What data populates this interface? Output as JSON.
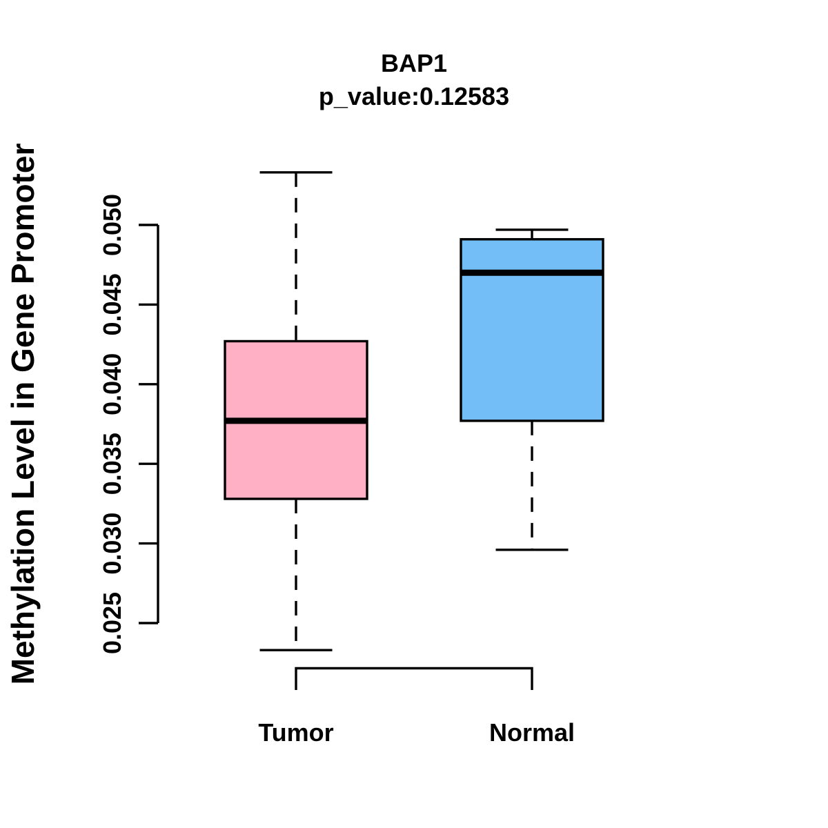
{
  "header": {
    "title": "BAP1",
    "subtitle": "p_value:0.12583"
  },
  "chart_data": {
    "type": "boxplot",
    "title": "BAP1",
    "subtitle": "p_value:0.12583",
    "ylabel": "Methylation Level in Gene Promoter",
    "xlabel": "",
    "ylim": [
      0.025,
      0.05
    ],
    "grid": false,
    "yticks": [
      {
        "value": 0.025,
        "label": "0.025"
      },
      {
        "value": 0.03,
        "label": "0.030"
      },
      {
        "value": 0.035,
        "label": "0.035"
      },
      {
        "value": 0.04,
        "label": "0.040"
      },
      {
        "value": 0.045,
        "label": "0.045"
      },
      {
        "value": 0.05,
        "label": "0.050"
      }
    ],
    "categories": [
      "Tumor",
      "Normal"
    ],
    "series": [
      {
        "name": "Tumor",
        "color": "#FFB0C4",
        "whisker_low": 0.0233,
        "q1": 0.0328,
        "median": 0.0377,
        "q3": 0.0427,
        "whisker_high": 0.0533
      },
      {
        "name": "Normal",
        "color": "#74BEF8",
        "whisker_low": 0.0296,
        "q1": 0.0377,
        "median": 0.047,
        "q3": 0.0491,
        "whisker_high": 0.0497
      }
    ],
    "colors": {
      "stroke": "#000000",
      "background": "#FFFFFF",
      "tumor_fill": "#FFB0C4",
      "normal_fill": "#74BEF8"
    }
  }
}
